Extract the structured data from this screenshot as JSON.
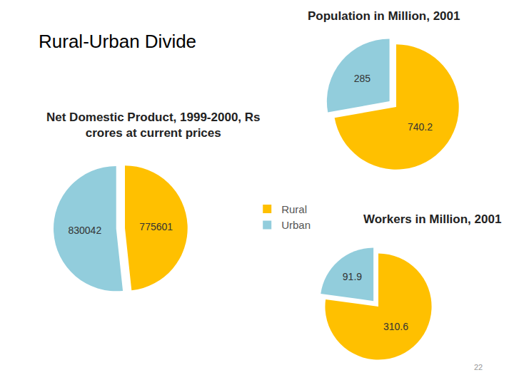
{
  "page": {
    "title": "Rural-Urban Divide",
    "page_number": "22"
  },
  "chart_data": [
    {
      "type": "pie",
      "title": "Population in Million, 2001",
      "categories": [
        "Rural",
        "Urban"
      ],
      "values": [
        740.2,
        285
      ],
      "colors": [
        "#FFC000",
        "#92CDDC"
      ],
      "data_labels": true
    },
    {
      "type": "pie",
      "title": "Net Domestic Product, 1999-2000, Rs\ncrores at current prices",
      "categories": [
        "Rural",
        "Urban"
      ],
      "values": [
        775601,
        830042
      ],
      "colors": [
        "#FFC000",
        "#92CDDC"
      ],
      "data_labels": true,
      "legend": "right"
    },
    {
      "type": "pie",
      "title": "Workers in Million, 2001",
      "categories": [
        "Rural",
        "Urban"
      ],
      "values": [
        310.6,
        91.9
      ],
      "colors": [
        "#FFC000",
        "#92CDDC"
      ],
      "data_labels": true
    }
  ]
}
